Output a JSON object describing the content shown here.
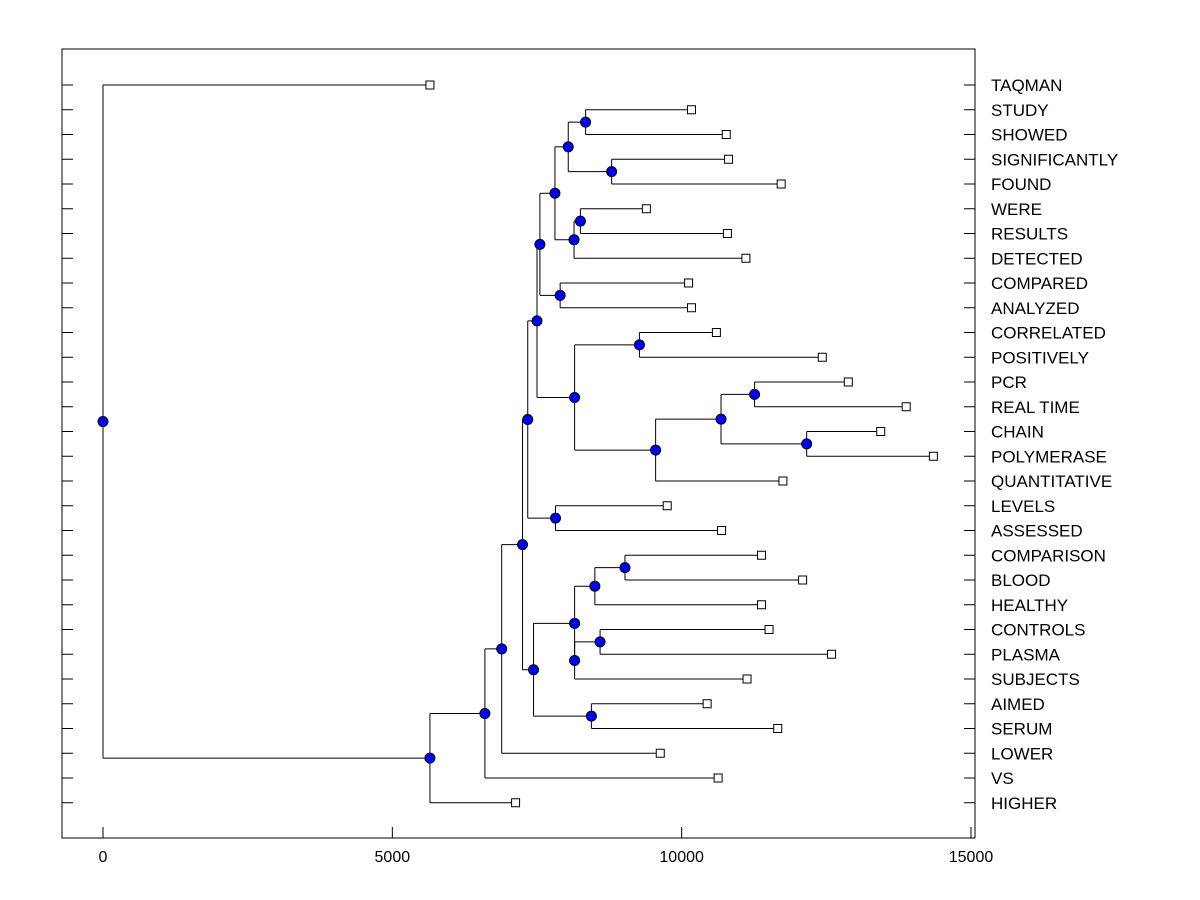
{
  "chart_data": {
    "type": "dendrogram",
    "title": "",
    "xlabel": "",
    "ylabel": "",
    "xlim": [
      -700,
      15000
    ],
    "xticks": [
      0,
      5000,
      10000,
      15000
    ],
    "xtick_labels": [
      "0",
      "5000",
      "10000",
      "15000"
    ],
    "grid": false,
    "colors": {
      "node": "#0000ff",
      "line": "#000000",
      "leaf_marker": "#ffffff"
    },
    "leaves": [
      {
        "name": "TAQMAN",
        "x": 5650
      },
      {
        "name": "STUDY",
        "x": 10170
      },
      {
        "name": "SHOWED",
        "x": 10770
      },
      {
        "name": "SIGNIFICANTLY",
        "x": 10810
      },
      {
        "name": "FOUND",
        "x": 11720
      },
      {
        "name": "WERE",
        "x": 9390
      },
      {
        "name": "RESULTS",
        "x": 10790
      },
      {
        "name": "DETECTED",
        "x": 11110
      },
      {
        "name": "COMPARED",
        "x": 10120
      },
      {
        "name": "ANALYZED",
        "x": 10170
      },
      {
        "name": "CORRELATED",
        "x": 10600
      },
      {
        "name": "POSITIVELY",
        "x": 12430
      },
      {
        "name": "PCR",
        "x": 12880
      },
      {
        "name": "REAL TIME",
        "x": 13880
      },
      {
        "name": "CHAIN",
        "x": 13440
      },
      {
        "name": "POLYMERASE",
        "x": 14350
      },
      {
        "name": "QUANTITATIVE",
        "x": 11750
      },
      {
        "name": "LEVELS",
        "x": 9750
      },
      {
        "name": "ASSESSED",
        "x": 10690
      },
      {
        "name": "COMPARISON",
        "x": 11380
      },
      {
        "name": "BLOOD",
        "x": 12090
      },
      {
        "name": "HEALTHY",
        "x": 11380
      },
      {
        "name": "CONTROLS",
        "x": 11510
      },
      {
        "name": "PLASMA",
        "x": 12590
      },
      {
        "name": "SUBJECTS",
        "x": 11130
      },
      {
        "name": "AIMED",
        "x": 10440
      },
      {
        "name": "SERUM",
        "x": 11660
      },
      {
        "name": "LOWER",
        "x": 9630
      },
      {
        "name": "VS",
        "x": 10630
      },
      {
        "name": "HIGHER",
        "x": 7130
      }
    ],
    "merges": [
      {
        "id": "n1",
        "x": 8340,
        "children": [
          "L:STUDY",
          "L:SHOWED"
        ]
      },
      {
        "id": "n2",
        "x": 8790,
        "children": [
          "L:SIGNIFICANTLY",
          "L:FOUND"
        ]
      },
      {
        "id": "n3",
        "x": 8040,
        "children": [
          "n1",
          "n2"
        ]
      },
      {
        "id": "n4",
        "x": 8250,
        "children": [
          "L:WERE",
          "L:RESULTS"
        ]
      },
      {
        "id": "n5",
        "x": 8140,
        "children": [
          "n4",
          "L:DETECTED"
        ]
      },
      {
        "id": "n6",
        "x": 7810,
        "children": [
          "n3",
          "n5"
        ]
      },
      {
        "id": "n7",
        "x": 7900,
        "children": [
          "L:COMPARED",
          "L:ANALYZED"
        ]
      },
      {
        "id": "n8",
        "x": 7550,
        "children": [
          "n6",
          "n7"
        ]
      },
      {
        "id": "n9",
        "x": 9270,
        "children": [
          "L:CORRELATED",
          "L:POSITIVELY"
        ]
      },
      {
        "id": "n10",
        "x": 11260,
        "children": [
          "L:PCR",
          "L:REAL TIME"
        ]
      },
      {
        "id": "n11",
        "x": 12160,
        "children": [
          "L:CHAIN",
          "L:POLYMERASE"
        ]
      },
      {
        "id": "n12",
        "x": 10680,
        "children": [
          "n10",
          "n11"
        ]
      },
      {
        "id": "n13",
        "x": 9550,
        "children": [
          "n12",
          "L:QUANTITATIVE"
        ]
      },
      {
        "id": "n14",
        "x": 8150,
        "children": [
          "n9",
          "n13"
        ]
      },
      {
        "id": "n15",
        "x": 7500,
        "children": [
          "n8",
          "n14"
        ]
      },
      {
        "id": "n16",
        "x": 7820,
        "children": [
          "L:LEVELS",
          "L:ASSESSED"
        ]
      },
      {
        "id": "n17",
        "x": 7340,
        "children": [
          "n15",
          "n16"
        ]
      },
      {
        "id": "n18",
        "x": 9020,
        "children": [
          "L:COMPARISON",
          "L:BLOOD"
        ]
      },
      {
        "id": "n19",
        "x": 8500,
        "children": [
          "n18",
          "L:HEALTHY"
        ]
      },
      {
        "id": "n20",
        "x": 8590,
        "children": [
          "L:CONTROLS",
          "L:PLASMA"
        ]
      },
      {
        "id": "n21",
        "x": 8150,
        "children": [
          "n20",
          "L:SUBJECTS"
        ]
      },
      {
        "id": "n22",
        "x": 8150,
        "children": [
          "n19",
          "n21"
        ]
      },
      {
        "id": "n23",
        "x": 8440,
        "children": [
          "L:AIMED",
          "L:SERUM"
        ]
      },
      {
        "id": "n24",
        "x": 7440,
        "children": [
          "n22",
          "n23"
        ]
      },
      {
        "id": "n25",
        "x": 7250,
        "children": [
          "n17",
          "n24"
        ]
      },
      {
        "id": "n26",
        "x": 6890,
        "children": [
          "n25",
          "L:LOWER"
        ]
      },
      {
        "id": "n27",
        "x": 6600,
        "children": [
          "n26",
          "L:VS"
        ]
      },
      {
        "id": "n28",
        "x": 5650,
        "children": [
          "n27",
          "L:HIGHER"
        ]
      },
      {
        "id": "n29",
        "x": 0,
        "children": [
          "L:TAQMAN",
          "n28"
        ]
      }
    ]
  }
}
